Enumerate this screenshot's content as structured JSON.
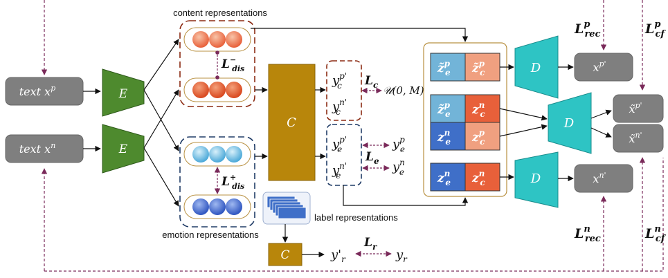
{
  "labels": {
    "content_representations": "content representations",
    "emotion_representations": "emotion representations",
    "label_representations": "label representations"
  },
  "inputs": {
    "text_p": {
      "base": "text x",
      "sup": "p"
    },
    "text_n": {
      "base": "text x",
      "sup": "n"
    }
  },
  "modules": {
    "encoder": "E",
    "classifier": "C",
    "decoder": "D"
  },
  "losses": {
    "dis_minus": {
      "base": "L",
      "sub": "dis",
      "sup": "−"
    },
    "dis_plus": {
      "base": "L",
      "sub": "dis",
      "sup": "+"
    },
    "c": {
      "base": "L",
      "sub": "c"
    },
    "e": {
      "base": "L",
      "sub": "e"
    },
    "r": {
      "base": "L",
      "sub": "r"
    },
    "rec_p": {
      "base": "L",
      "sub": "rec",
      "sup": "p"
    },
    "rec_n": {
      "base": "L",
      "sub": "rec",
      "sup": "n"
    },
    "cf_p": {
      "base": "L",
      "sub": "cf",
      "sup": "p"
    },
    "cf_n": {
      "base": "L",
      "sub": "cf",
      "sup": "n"
    }
  },
  "predictions": {
    "yc_p": {
      "base": "y",
      "sub": "c",
      "sup": "p'"
    },
    "yc_n": {
      "base": "y",
      "sub": "c",
      "sup": "n'"
    },
    "ye_p": {
      "base": "y",
      "sub": "e",
      "sup": "p'"
    },
    "ye_n": {
      "base": "y",
      "sub": "e",
      "sup": "n'"
    },
    "yr_pred": {
      "base": "y'",
      "sub": "r"
    }
  },
  "targets": {
    "uniform": "𝒰(0, M)",
    "ye_p": {
      "base": "y",
      "sub": "e",
      "sup": "p"
    },
    "ye_n": {
      "base": "y",
      "sub": "e",
      "sup": "n"
    },
    "yr": {
      "base": "y",
      "sub": "r"
    }
  },
  "latents": {
    "ze_p_tilde": {
      "base": "z̃",
      "sub": "e",
      "sup": "p"
    },
    "zc_p_tilde": {
      "base": "z̃",
      "sub": "c",
      "sup": "p"
    },
    "zc_n": {
      "base": "z",
      "sub": "c",
      "sup": "n"
    },
    "ze_n": {
      "base": "z",
      "sub": "e",
      "sup": "n"
    },
    "zc_p": {
      "base": "z",
      "sub": "c",
      "sup": "p"
    }
  },
  "outputs": {
    "xp_rec": {
      "base": "x",
      "sup": "p'"
    },
    "xp_cf": {
      "base": "x̃",
      "sup": "p'"
    },
    "xn_cf": {
      "base": "x̃",
      "sup": "n'"
    },
    "xn_rec": {
      "base": "x",
      "sup": "n'"
    }
  },
  "colors": {
    "encoder": "#4e8a2e",
    "classifier": "#b8860b",
    "decoder": "#2ec4c4",
    "io_box": "#7f7f7f",
    "content_dash": "#8b2a12",
    "emotion_dash": "#1f3b66",
    "loss_arrow": "#7a2a5a",
    "emotion_tile": "#72b4d8",
    "emotion_tile_dark": "#3f6fc8",
    "content_tile": "#e8603a",
    "content_tile_light": "#f0a080"
  }
}
